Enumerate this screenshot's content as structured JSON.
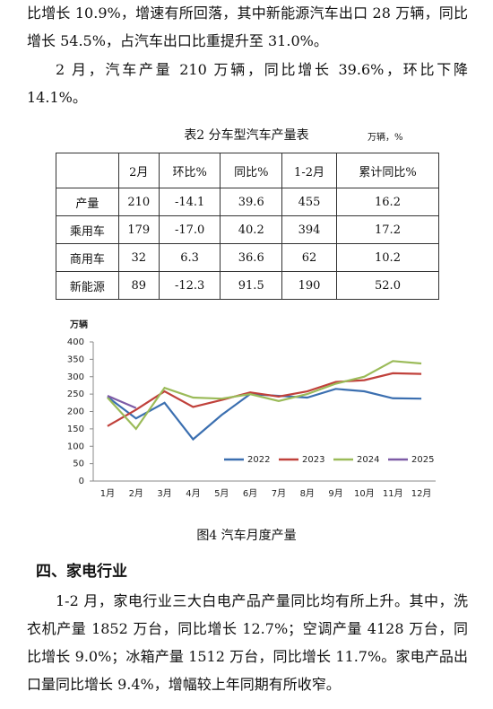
{
  "paragraphs_top": [
    "比增长 10.9%，增速有所回落，其中新能源汽车出口 28 万辆，同比增长 54.5%，占汽车出口比重提升至 31.0%。",
    "2 月，汽车产量 210 万辆，同比增长 39.6%，环比下降 14.1%。"
  ],
  "table": {
    "title": "表2 分车型汽车产量表",
    "unit": "万辆，%",
    "header": [
      "2月",
      "环比%",
      "同比%",
      "1-2月",
      "累计同比%"
    ],
    "rows": [
      {
        "label": "产量",
        "cells": [
          "210",
          "-14.1",
          "39.6",
          "455",
          "16.2"
        ]
      },
      {
        "label": "乘用车",
        "cells": [
          "179",
          "-17.0",
          "40.2",
          "394",
          "17.2"
        ]
      },
      {
        "label": "商用车",
        "cells": [
          "32",
          "6.3",
          "36.6",
          "62",
          "10.2"
        ]
      },
      {
        "label": "新能源",
        "cells": [
          "89",
          "-12.3",
          "91.5",
          "190",
          "52.0"
        ]
      }
    ]
  },
  "chart_data": {
    "type": "line",
    "y_label": "万辆",
    "categories": [
      "1月",
      "2月",
      "3月",
      "4月",
      "5月",
      "6月",
      "7月",
      "8月",
      "9月",
      "10月",
      "11月",
      "12月"
    ],
    "series": [
      {
        "name": "2022",
        "color": "#3b6fb0",
        "values": [
          242,
          180,
          225,
          120,
          190,
          250,
          245,
          240,
          265,
          258,
          238,
          237
        ]
      },
      {
        "name": "2023",
        "color": "#c0413b",
        "values": [
          158,
          205,
          258,
          213,
          233,
          255,
          243,
          258,
          285,
          290,
          310,
          308
        ]
      },
      {
        "name": "2024",
        "color": "#9bbb59",
        "values": [
          240,
          150,
          268,
          240,
          237,
          250,
          230,
          250,
          280,
          300,
          345,
          338
        ]
      },
      {
        "name": "2025",
        "color": "#7d5ba6",
        "values": [
          245,
          210,
          null,
          null,
          null,
          null,
          null,
          null,
          null,
          null,
          null,
          null
        ]
      }
    ],
    "ylim": [
      0,
      400
    ],
    "yticks": [
      0,
      50,
      100,
      150,
      200,
      250,
      300,
      350,
      400
    ],
    "grid": false,
    "legend": "lower right"
  },
  "figure_caption": "图4 汽车月度产量",
  "section_heading": "四、家电行业",
  "paragraphs_bottom": [
    "1-2 月，家电行业三大白电产品产量同比均有所上升。其中，洗衣机产量 1852 万台，同比增长 12.7%；空调产量 4128 万台，同比增长 9.0%；冰箱产量 1512 万台，同比增长 11.7%。家电产品出口量同比增长 9.4%，增幅较上年同期有所收窄。"
  ]
}
